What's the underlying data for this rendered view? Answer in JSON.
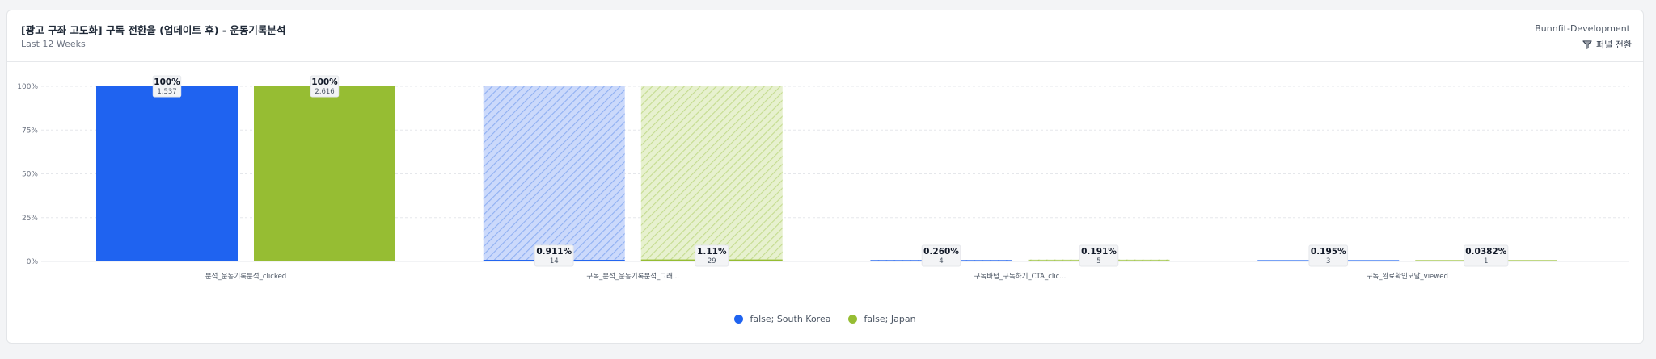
{
  "header": {
    "title": "[광고 구좌 고도화] 구독 전환율 (업데이트 후) - 운동기록분석",
    "subtitle": "Last 12 Weeks",
    "project": "Bunnfit-Development",
    "funnel_toggle": "퍼널 전환",
    "funnel_icon": "funnel-icon"
  },
  "colors": {
    "korea": "#1f63f0",
    "japan": "#96bd33",
    "grid": "#e5e7eb"
  },
  "chart_data": {
    "type": "bar",
    "categories": [
      "분석_운동기록분석_clicked",
      "구독_분석_운동기록분석_그래...",
      "구독바텀_구독하기_CTA_clic...",
      "구독_완료확인모달_viewed"
    ],
    "yticks": [
      "100%",
      "75%",
      "50%",
      "25%",
      "0%"
    ],
    "ylim": [
      0,
      100
    ],
    "series": [
      {
        "name": "false; South Korea",
        "values": [
          100,
          0.911,
          0.26,
          0.195
        ],
        "value_labels": [
          "100%",
          "0.911%",
          "0.260%",
          "0.195%"
        ],
        "counts": [
          "1,537",
          "14",
          "4",
          "3"
        ]
      },
      {
        "name": "false; Japan",
        "values": [
          100,
          1.11,
          0.191,
          0.0382
        ],
        "value_labels": [
          "100%",
          "1.11%",
          "0.191%",
          "0.0382%"
        ],
        "counts": [
          "2,616",
          "29",
          "5",
          "1"
        ]
      }
    ],
    "legend_position": "bottom-center",
    "grid": true
  }
}
